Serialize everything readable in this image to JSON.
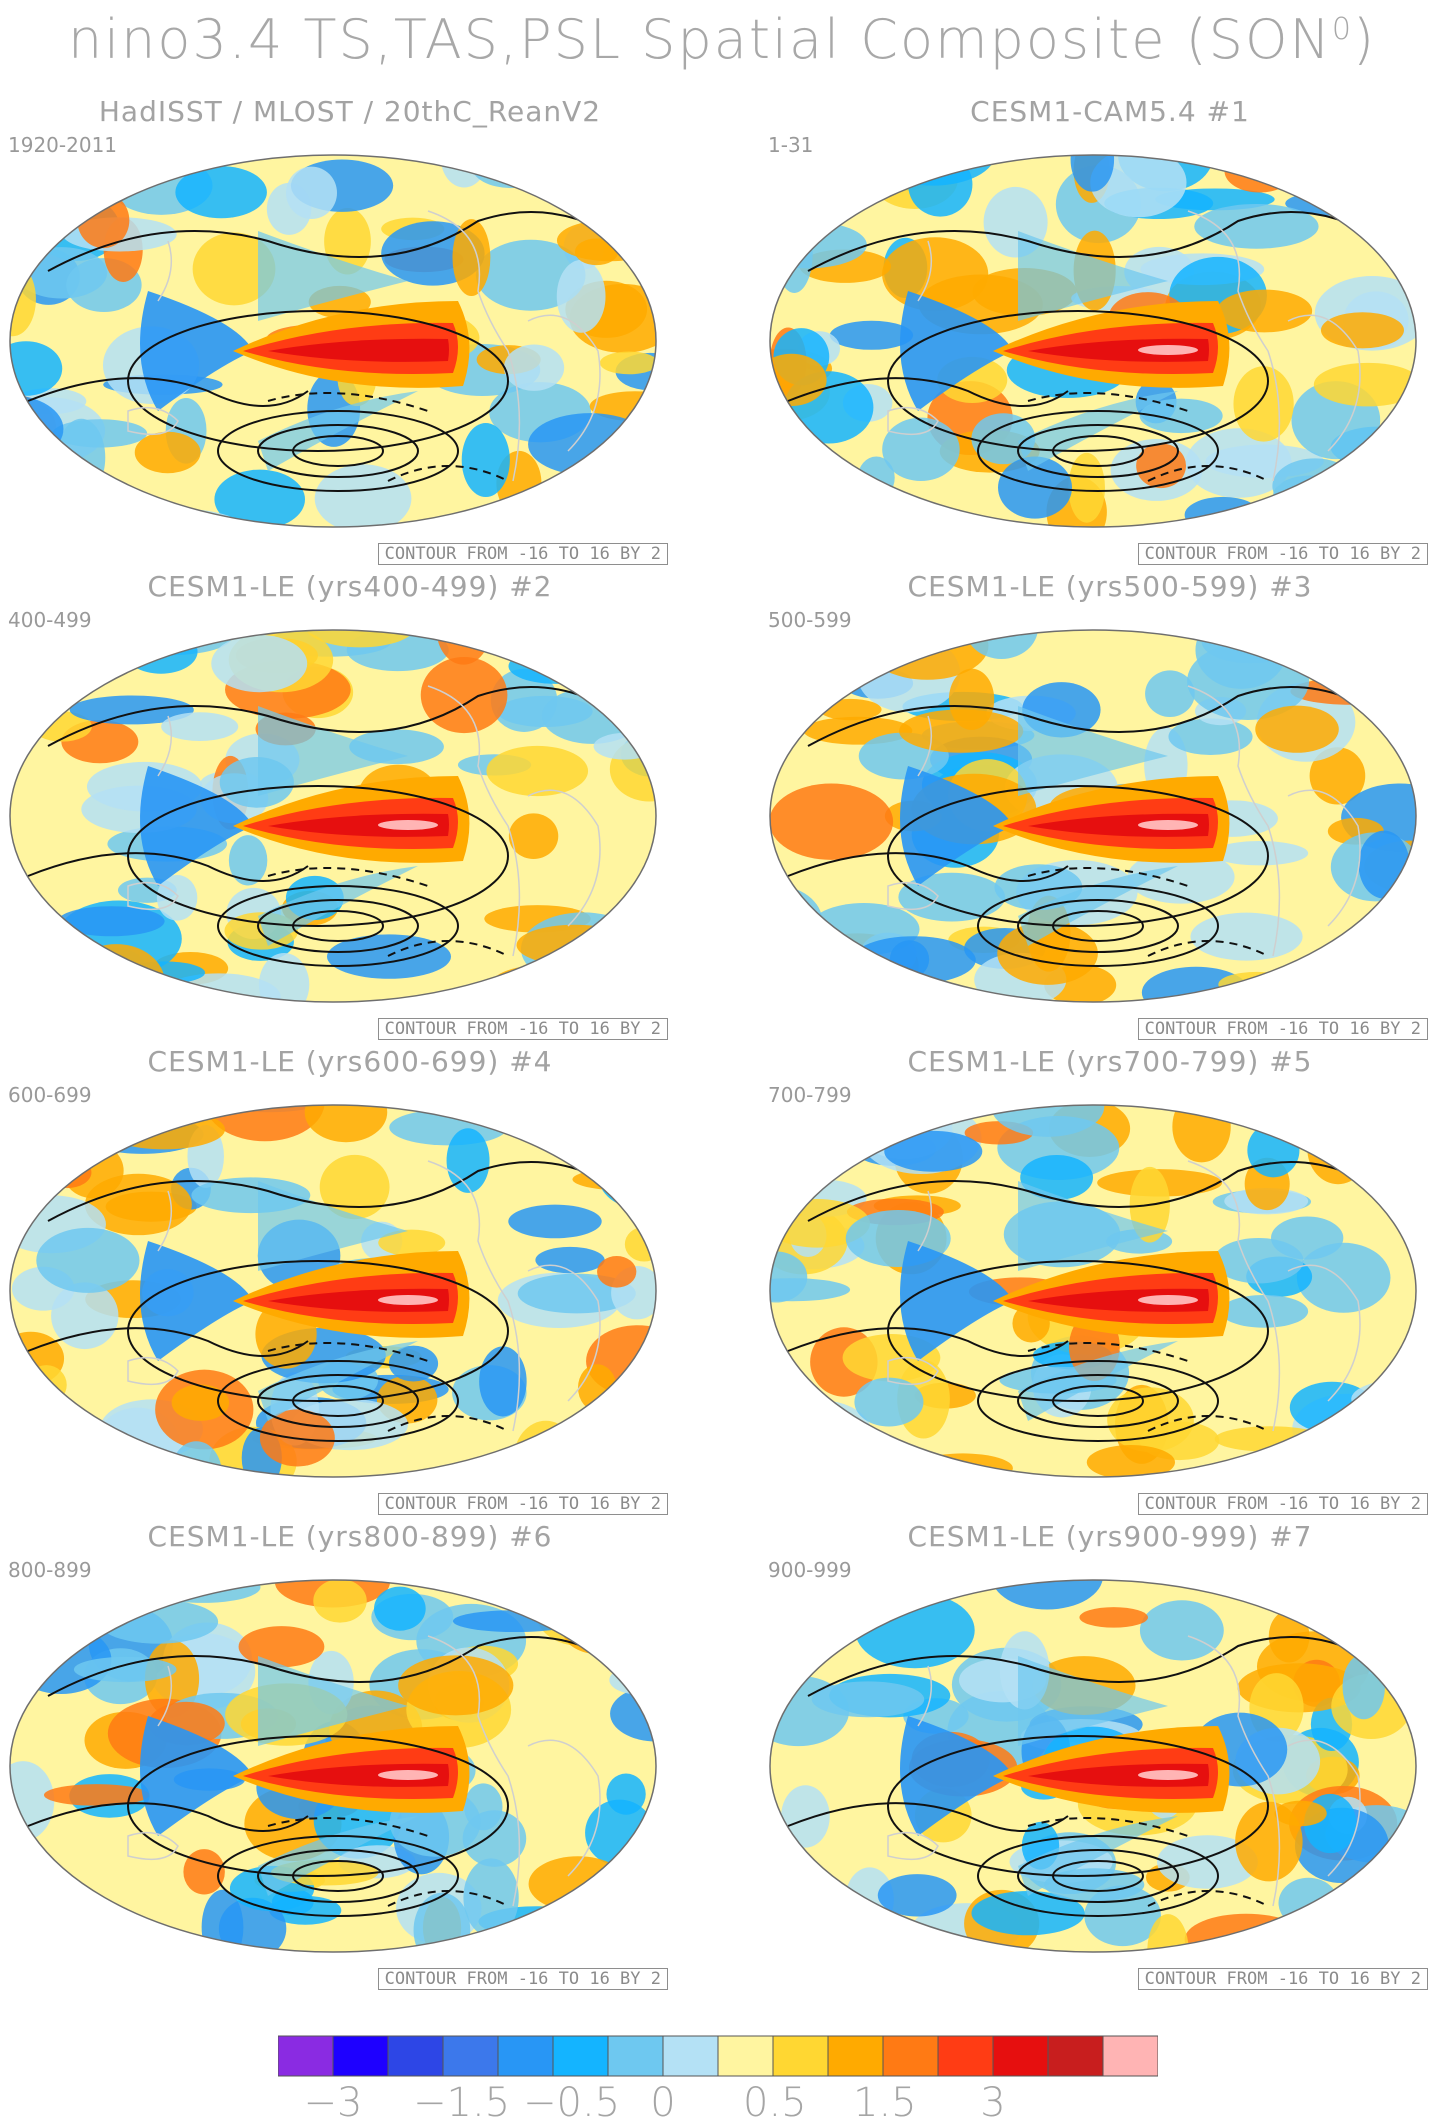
{
  "title": "nino3.4 TS,TAS,PSL Spatial Composite (SON",
  "title_sup": "0",
  "title_close": ")",
  "contour_label": "CONTOUR FROM -16 TO 16 BY 2",
  "panels": [
    {
      "title": "HadISST / MLOST / 20thC_ReanV2",
      "years": "1920-2011"
    },
    {
      "title": "CESM1-CAM5.4       #1",
      "years": "1-31"
    },
    {
      "title": "CESM1-LE (yrs400-499) #2",
      "years": "400-499"
    },
    {
      "title": "CESM1-LE (yrs500-599) #3",
      "years": "500-599"
    },
    {
      "title": "CESM1-LE (yrs600-699) #4",
      "years": "600-699"
    },
    {
      "title": "CESM1-LE (yrs700-799) #5",
      "years": "700-799"
    },
    {
      "title": "CESM1-LE (yrs800-899) #6",
      "years": "800-899"
    },
    {
      "title": "CESM1-LE (yrs900-999) #7",
      "years": "900-999"
    }
  ],
  "colorbar": {
    "colors": [
      "#8a2be2",
      "#1e00ff",
      "#2d46e6",
      "#3c78eb",
      "#2896f5",
      "#14b4ff",
      "#6ec8f0",
      "#b4e1f5",
      "#fff5a0",
      "#ffd732",
      "#ffaa00",
      "#ff7a14",
      "#ff3c14",
      "#e60f0f",
      "#c81e1e",
      "#ffb4b4"
    ],
    "labels": [
      "-3",
      "-1.5",
      "-0.5",
      "0",
      "0.5",
      "1.5",
      "3"
    ]
  }
}
